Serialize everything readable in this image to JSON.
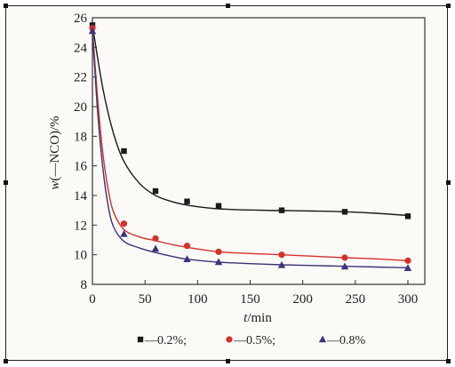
{
  "chart_data": {
    "type": "scatter",
    "xlabel_var": "t",
    "xlabel_unit": "/min",
    "ylabel_var": "w",
    "ylabel_rest": "(—NCO)/%",
    "xlim": [
      0,
      310
    ],
    "ylim": [
      8,
      26
    ],
    "xticks": [
      0,
      50,
      100,
      150,
      200,
      250,
      300
    ],
    "yticks": [
      8,
      10,
      12,
      14,
      16,
      18,
      20,
      22,
      24,
      26
    ],
    "grid": false,
    "legend_position": "bottom",
    "series": [
      {
        "name": "0.2%",
        "marker": "square",
        "color": "#1a1a1a",
        "x": [
          0,
          30,
          60,
          90,
          120,
          180,
          240,
          300
        ],
        "y": [
          25.5,
          17.0,
          14.3,
          13.6,
          13.3,
          13.0,
          12.9,
          12.6
        ],
        "fit_x": [
          0,
          10,
          20,
          30,
          45,
          60,
          75,
          90,
          105,
          120,
          150,
          180,
          210,
          240,
          270,
          300
        ],
        "fit_y": [
          25.5,
          21.2,
          18.2,
          16.3,
          14.8,
          14.0,
          13.6,
          13.35,
          13.2,
          13.1,
          13.02,
          12.98,
          12.95,
          12.9,
          12.8,
          12.65
        ]
      },
      {
        "name": "0.5%",
        "marker": "circle",
        "color": "#d4302a",
        "x": [
          0,
          30,
          60,
          90,
          120,
          180,
          240,
          300
        ],
        "y": [
          25.3,
          12.1,
          11.1,
          10.6,
          10.2,
          10.0,
          9.8,
          9.6
        ],
        "fit_x": [
          0,
          5,
          10,
          15,
          20,
          30,
          45,
          60,
          75,
          90,
          120,
          150,
          180,
          210,
          240,
          270,
          300
        ],
        "fit_y": [
          25.3,
          20.5,
          16.8,
          14.4,
          12.9,
          11.7,
          11.2,
          10.95,
          10.7,
          10.5,
          10.2,
          10.08,
          10.0,
          9.9,
          9.8,
          9.72,
          9.6
        ]
      },
      {
        "name": "0.8%",
        "marker": "triangle",
        "color": "#3b3478",
        "x": [
          0,
          30,
          60,
          90,
          120,
          180,
          240,
          300
        ],
        "y": [
          25.1,
          11.4,
          10.4,
          9.7,
          9.5,
          9.3,
          9.2,
          9.1
        ],
        "fit_x": [
          0,
          5,
          10,
          15,
          20,
          30,
          45,
          60,
          75,
          90,
          120,
          150,
          180,
          210,
          240,
          270,
          300
        ],
        "fit_y": [
          25.1,
          19.6,
          15.8,
          13.3,
          11.9,
          10.9,
          10.45,
          10.15,
          9.9,
          9.7,
          9.5,
          9.4,
          9.32,
          9.27,
          9.22,
          9.17,
          9.12
        ]
      }
    ],
    "legend_items": [
      "—0.2%;",
      "—0.5%;",
      "—0.8%"
    ]
  }
}
